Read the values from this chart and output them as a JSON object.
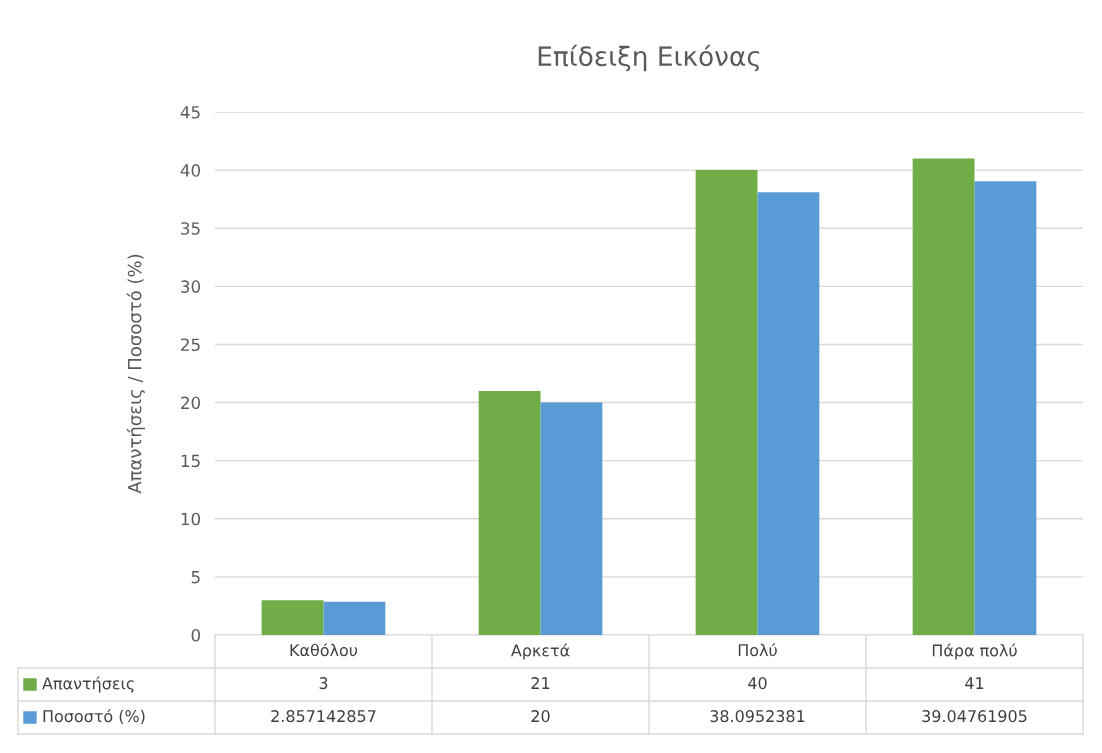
{
  "chart_data": {
    "type": "bar",
    "title": "Επίδειξη Εικόνας",
    "ylabel": "Απαντήσεις / Ποσοστό (%)",
    "categories": [
      "Καθόλου",
      "Αρκετά",
      "Πολύ",
      "Πάρα πολύ"
    ],
    "series": [
      {
        "name": "Απαντήσεις",
        "color": "#70ad47",
        "values": [
          3,
          21,
          40,
          41
        ]
      },
      {
        "name": "Ποσοστό (%)",
        "color": "#5b9bd5",
        "values": [
          2.857142857,
          20,
          38.0952381,
          39.04761905
        ]
      }
    ],
    "ylim": [
      0,
      45
    ],
    "yticks": [
      0,
      5,
      10,
      15,
      20,
      25,
      30,
      35,
      40,
      45
    ],
    "grid": "y",
    "legend": "bottom",
    "data_labels": true
  }
}
